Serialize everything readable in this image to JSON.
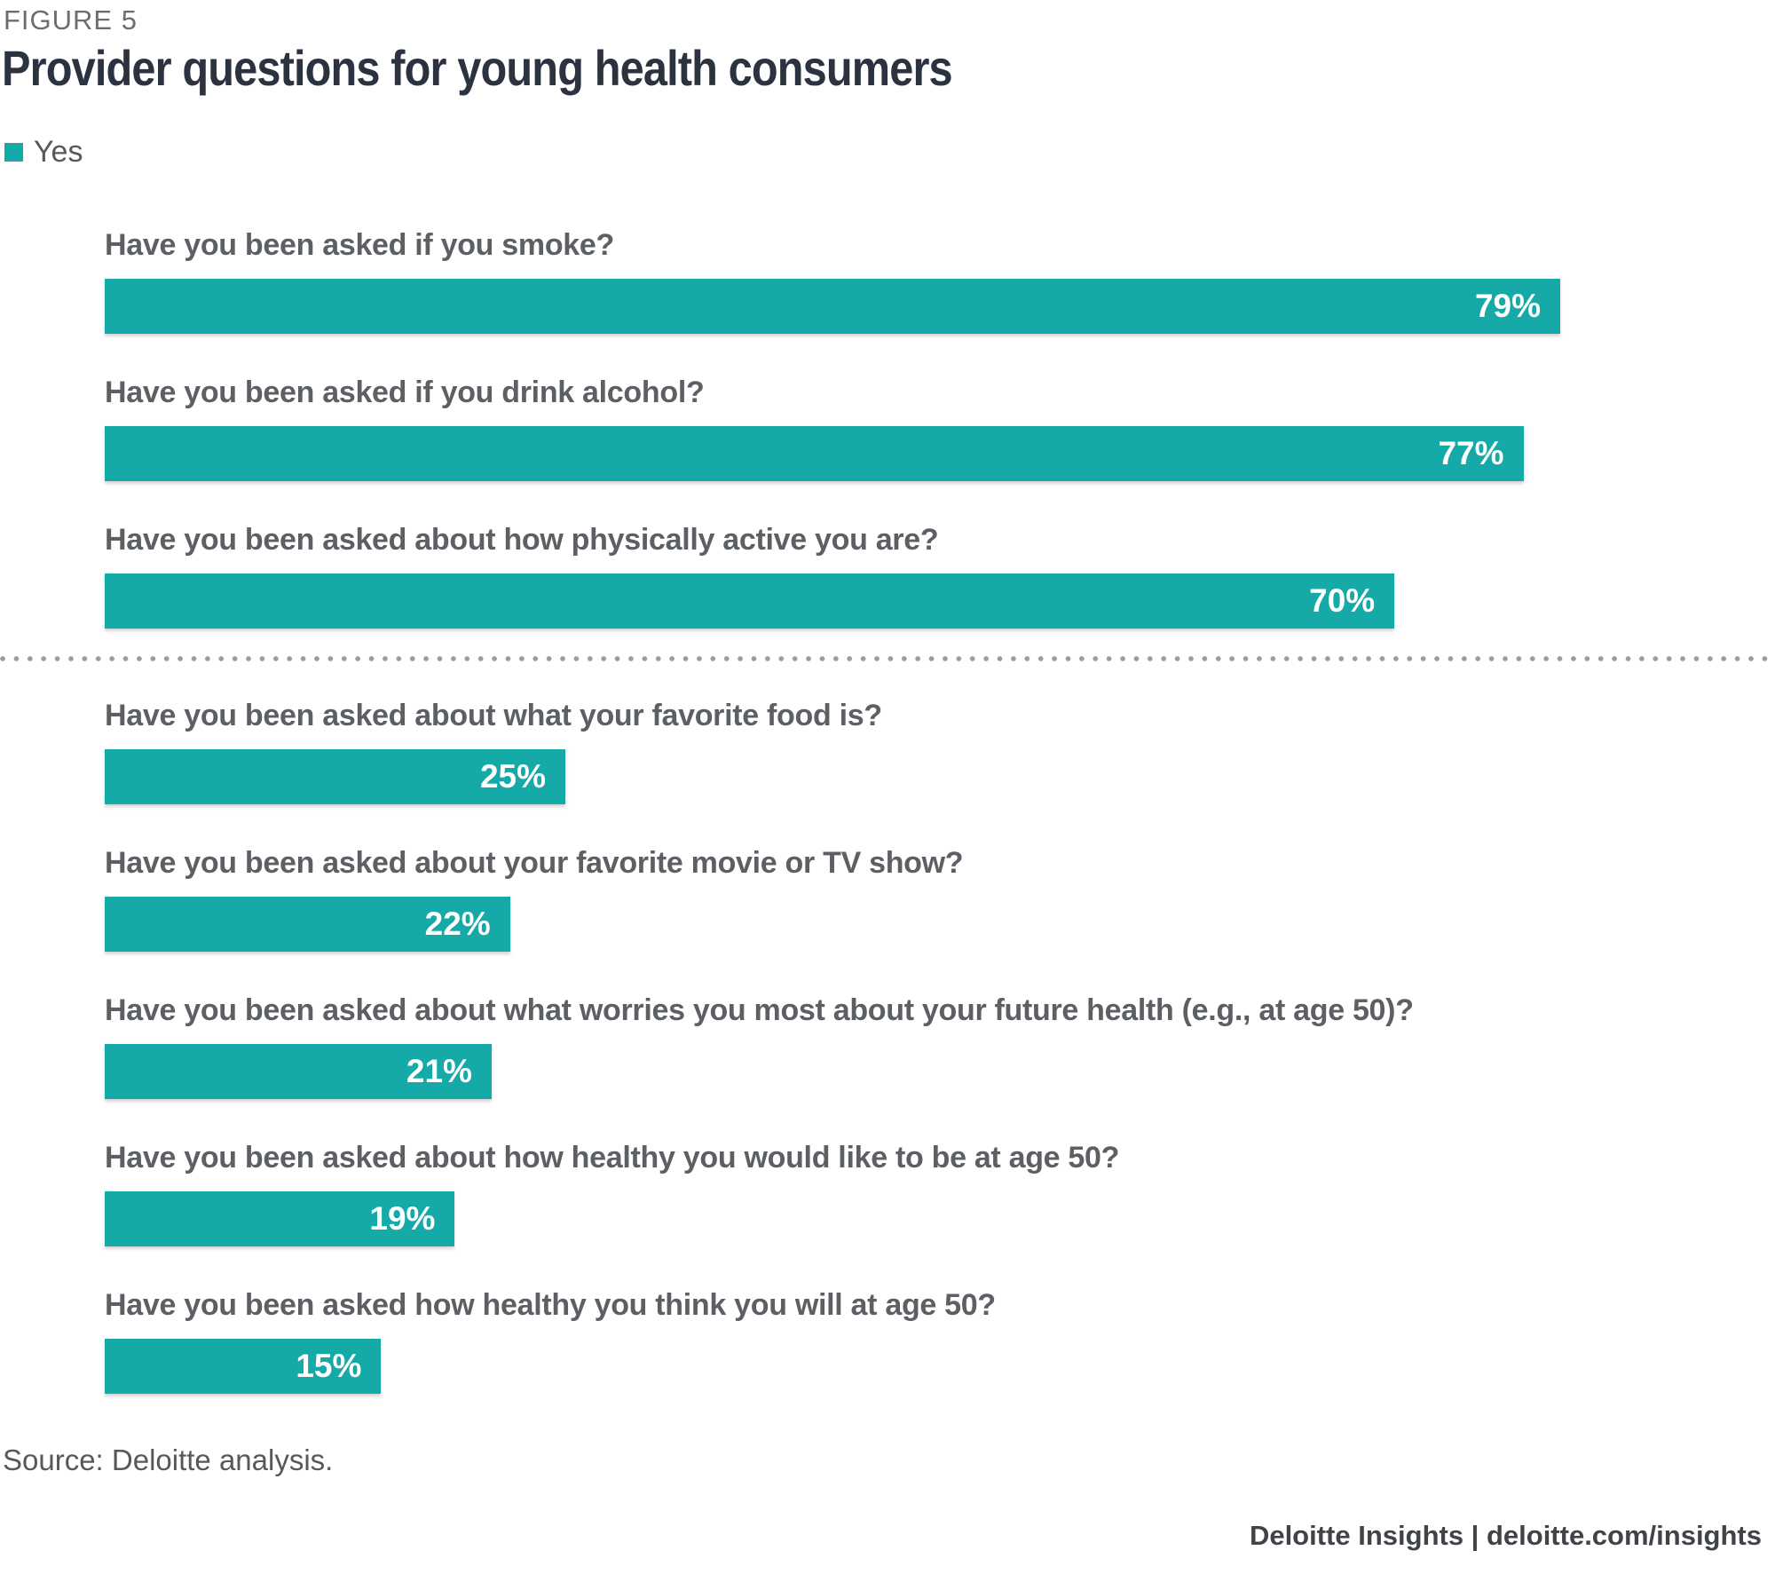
{
  "header": {
    "figure_label": "FIGURE 5",
    "title": "Provider questions for young health consumers"
  },
  "legend": {
    "items": [
      {
        "label": "Yes",
        "color": "#15AAA7"
      }
    ]
  },
  "chart_data": {
    "type": "bar",
    "orientation": "horizontal",
    "title": "Provider questions for young health consumers",
    "series_name": "Yes",
    "unit": "%",
    "bar_color": "#15AAA7",
    "value_label_suffix": "%",
    "xlim": [
      0,
      100
    ],
    "grid": false,
    "legend_position": "top-left",
    "categories": [
      "Have you been asked if you smoke?",
      "Have you been asked if you drink alcohol?",
      "Have you been asked about how physically active you are?",
      "Have you been asked about what your favorite food is?",
      "Have you been asked about your favorite movie or TV show?",
      "Have you been asked about what worries you most about your future health (e.g., at age 50)?",
      "Have you been asked about how healthy you would like to be at age 50?",
      "Have you been asked how healthy you think you will at age 50?"
    ],
    "values": [
      79,
      77,
      70,
      25,
      22,
      21,
      19,
      15
    ],
    "separator_after_index": 2
  },
  "footer": {
    "source": "Source: Deloitte analysis.",
    "brand": "Deloitte Insights | deloitte.com/insights"
  }
}
